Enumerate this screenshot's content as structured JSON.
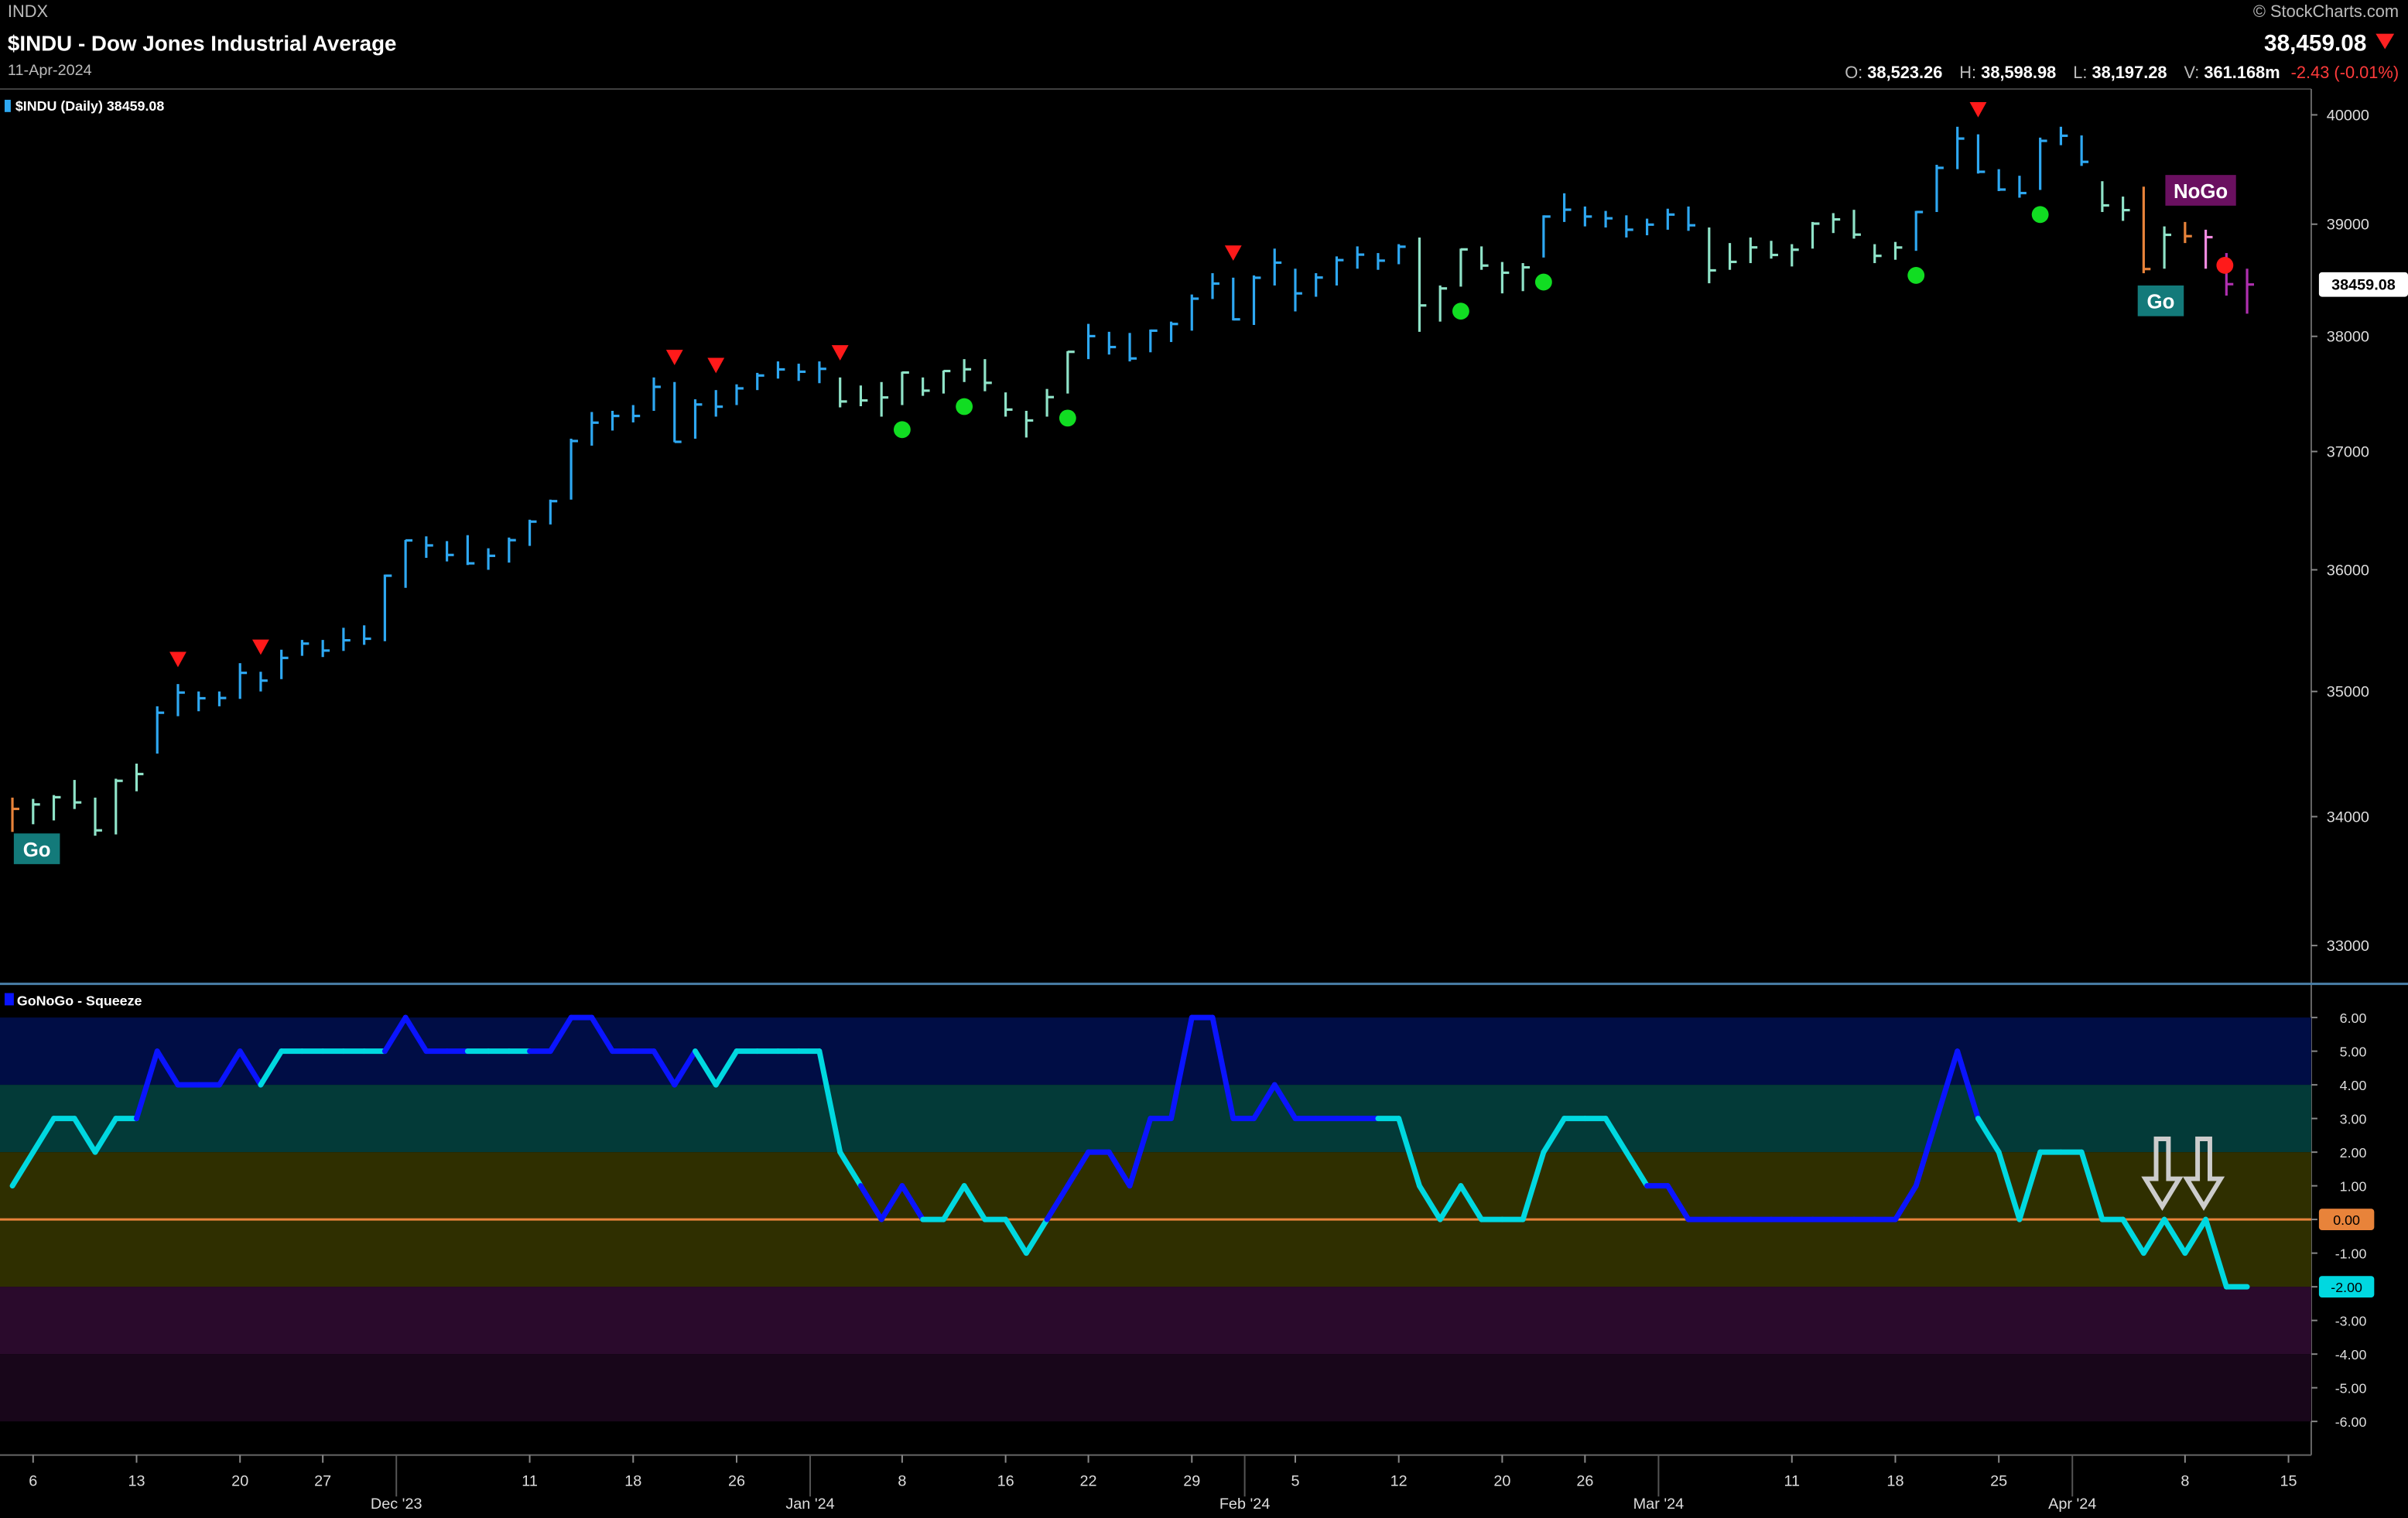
{
  "header": {
    "exchange": "INDX",
    "title": "$INDU - Dow Jones Industrial Average",
    "date": "11-Apr-2024",
    "copyright": "© StockCharts.com",
    "last": "38,459.08",
    "open_label": "O:",
    "open": "38,523.26",
    "high_label": "H:",
    "high": "38,598.98",
    "low_label": "L:",
    "low": "38,197.28",
    "volume_label": "V:",
    "volume": "361.168m",
    "change": "-2.43 (-0.01%)"
  },
  "chart_data": [
    {
      "type": "ohlc",
      "legend": "$INDU (Daily) 38459.08",
      "log": true,
      "ylim": [
        32720,
        40240
      ],
      "yticks": [
        33000,
        34000,
        35000,
        36000,
        37000,
        38000,
        39000,
        40000
      ],
      "last_price": 38459.08,
      "xlim": [
        -0.6,
        111.1
      ],
      "xticks": [
        {
          "value": 1,
          "label": "6"
        },
        {
          "value": 6,
          "label": "13"
        },
        {
          "value": 11,
          "label": "20"
        },
        {
          "value": 15,
          "label": "27"
        },
        {
          "value": 25,
          "label": "11"
        },
        {
          "value": 30,
          "label": "18"
        },
        {
          "value": 35,
          "label": "26"
        },
        {
          "value": 43,
          "label": "8"
        },
        {
          "value": 48,
          "label": "16"
        },
        {
          "value": 52,
          "label": "22"
        },
        {
          "value": 57,
          "label": "29"
        },
        {
          "value": 62,
          "label": "5"
        },
        {
          "value": 67,
          "label": "12"
        },
        {
          "value": 72,
          "label": "20"
        },
        {
          "value": 76,
          "label": "26"
        },
        {
          "value": 86,
          "label": "11"
        },
        {
          "value": 91,
          "label": "18"
        },
        {
          "value": 96,
          "label": "25"
        },
        {
          "value": 105,
          "label": "8"
        },
        {
          "value": 110,
          "label": "15"
        }
      ],
      "month_ticks": [
        {
          "value": 19,
          "label": "Dec '23"
        },
        {
          "value": 39,
          "label": "Jan '24"
        },
        {
          "value": 60,
          "label": "Feb '24"
        },
        {
          "value": 80,
          "label": "Mar '24"
        },
        {
          "value": 100,
          "label": "Apr '24"
        }
      ],
      "close": [
        34061,
        34096,
        34153,
        34112,
        33892,
        34283,
        34337,
        34828,
        34991,
        34945,
        34947,
        35151,
        35088,
        35273,
        35390,
        35333,
        35417,
        35430,
        35951,
        36246,
        36204,
        36124,
        36054,
        36117,
        36248,
        36404,
        36577,
        37090,
        37248,
        37306,
        37306,
        37558,
        37083,
        37405,
        37386,
        37545,
        37657,
        37710,
        37690,
        37715,
        37431,
        37440,
        37466,
        37683,
        37525,
        37696,
        37711,
        37593,
        37361,
        37267,
        37469,
        37864,
        38002,
        37906,
        37806,
        38050,
        38109,
        38333,
        38467,
        38150,
        38519,
        38654,
        38380,
        38521,
        38677,
        38726,
        38672,
        38797,
        38273,
        38424,
        38773,
        38628,
        38564,
        38612,
        39069,
        39131,
        39069,
        39053,
        38950,
        38996,
        39087,
        38990,
        38585,
        38661,
        38791,
        38723,
        38770,
        39005,
        39043,
        38906,
        38715,
        38790,
        39110,
        39512,
        39781,
        39476,
        39314,
        39282,
        39760,
        39807,
        39567,
        39170,
        39127,
        38597,
        38904,
        38892,
        38883,
        38462,
        38459
      ],
      "high": [
        34150,
        34140,
        34170,
        34290,
        34150,
        34300,
        34420,
        34880,
        35060,
        35000,
        35000,
        35230,
        35160,
        35340,
        35420,
        35420,
        35520,
        35540,
        35960,
        36250,
        36280,
        36240,
        36290,
        36180,
        36270,
        36420,
        36590,
        37110,
        37340,
        37350,
        37400,
        37640,
        37600,
        37450,
        37530,
        37580,
        37680,
        37780,
        37760,
        37780,
        37640,
        37570,
        37600,
        37690,
        37640,
        37700,
        37800,
        37800,
        37510,
        37350,
        37540,
        37870,
        38110,
        38040,
        38030,
        38060,
        38130,
        38370,
        38560,
        38520,
        38540,
        38780,
        38600,
        38560,
        38710,
        38800,
        38740,
        38820,
        38880,
        38450,
        38780,
        38800,
        38660,
        38650,
        39080,
        39280,
        39160,
        39120,
        39080,
        39050,
        39140,
        39160,
        38970,
        38830,
        38880,
        38850,
        38820,
        39020,
        39100,
        39130,
        38820,
        38840,
        39120,
        39540,
        39890,
        39820,
        39500,
        39440,
        39790,
        39890,
        39810,
        39390,
        39250,
        39340,
        38980,
        39020,
        38950,
        38740,
        38600
      ],
      "low": [
        33880,
        33940,
        33970,
        34060,
        33850,
        33860,
        34200,
        34500,
        34800,
        34840,
        34880,
        34940,
        35000,
        35100,
        35290,
        35280,
        35330,
        35380,
        35410,
        35850,
        36100,
        36070,
        36040,
        36000,
        36060,
        36200,
        36380,
        36590,
        37050,
        37180,
        37250,
        37350,
        37080,
        37110,
        37300,
        37400,
        37530,
        37630,
        37610,
        37590,
        37380,
        37390,
        37300,
        37400,
        37480,
        37500,
        37600,
        37520,
        37300,
        37120,
        37300,
        37500,
        37800,
        37840,
        37780,
        37860,
        37950,
        38050,
        38330,
        38140,
        38100,
        38450,
        38220,
        38350,
        38450,
        38600,
        38590,
        38640,
        38040,
        38130,
        38440,
        38590,
        38380,
        38400,
        38700,
        39020,
        38980,
        38970,
        38880,
        38900,
        38950,
        38940,
        38470,
        38590,
        38650,
        38690,
        38620,
        38780,
        38920,
        38870,
        38650,
        38680,
        38760,
        39110,
        39500,
        39460,
        39300,
        39240,
        39310,
        39720,
        39530,
        39110,
        39030,
        38560,
        38600,
        38830,
        38600,
        38360,
        38200
      ],
      "colors": [
        "#e8833a",
        "#8fe3c8",
        "#8fe3c8",
        "#8fe3c8",
        "#8fe3c8",
        "#8fe3c8",
        "#8fe3c8",
        "#2ea8f2",
        "#2ea8f2",
        "#2ea8f2",
        "#2ea8f2",
        "#2ea8f2",
        "#2ea8f2",
        "#2ea8f2",
        "#2ea8f2",
        "#2ea8f2",
        "#2ea8f2",
        "#2ea8f2",
        "#2ea8f2",
        "#2ea8f2",
        "#2ea8f2",
        "#2ea8f2",
        "#2ea8f2",
        "#2ea8f2",
        "#2ea8f2",
        "#2ea8f2",
        "#2ea8f2",
        "#2ea8f2",
        "#2ea8f2",
        "#2ea8f2",
        "#2ea8f2",
        "#2ea8f2",
        "#2ea8f2",
        "#2ea8f2",
        "#2ea8f2",
        "#2ea8f2",
        "#2ea8f2",
        "#2ea8f2",
        "#2ea8f2",
        "#2ea8f2",
        "#8fe3c8",
        "#8fe3c8",
        "#8fe3c8",
        "#8fe3c8",
        "#8fe3c8",
        "#8fe3c8",
        "#8fe3c8",
        "#8fe3c8",
        "#8fe3c8",
        "#8fe3c8",
        "#8fe3c8",
        "#8fe3c8",
        "#2ea8f2",
        "#2ea8f2",
        "#2ea8f2",
        "#2ea8f2",
        "#2ea8f2",
        "#2ea8f2",
        "#2ea8f2",
        "#2ea8f2",
        "#2ea8f2",
        "#2ea8f2",
        "#2ea8f2",
        "#2ea8f2",
        "#2ea8f2",
        "#2ea8f2",
        "#2ea8f2",
        "#2ea8f2",
        "#8fe3c8",
        "#8fe3c8",
        "#8fe3c8",
        "#8fe3c8",
        "#8fe3c8",
        "#8fe3c8",
        "#2ea8f2",
        "#2ea8f2",
        "#2ea8f2",
        "#2ea8f2",
        "#2ea8f2",
        "#2ea8f2",
        "#2ea8f2",
        "#2ea8f2",
        "#8fe3c8",
        "#8fe3c8",
        "#8fe3c8",
        "#8fe3c8",
        "#8fe3c8",
        "#8fe3c8",
        "#8fe3c8",
        "#8fe3c8",
        "#8fe3c8",
        "#8fe3c8",
        "#2ea8f2",
        "#2ea8f2",
        "#2ea8f2",
        "#2ea8f2",
        "#2ea8f2",
        "#2ea8f2",
        "#2ea8f2",
        "#2ea8f2",
        "#2ea8f2",
        "#8fe3c8",
        "#8fe3c8",
        "#e8833a",
        "#8fe3c8",
        "#e8833a",
        "#f28ae0",
        "#b030b0",
        "#b030b0"
      ],
      "signals": {
        "down_triangles": [
          8,
          12,
          32,
          34,
          40,
          59,
          95
        ],
        "go_dots": [
          43,
          46,
          51,
          70,
          74,
          92,
          98
        ],
        "nogo_dots": [
          107
        ]
      },
      "annotations": [
        "Go",
        "NoGo",
        "Go"
      ]
    },
    {
      "type": "line",
      "title": "GoNoGo - Squeeze",
      "ylim": [
        -7,
        7
      ],
      "yticks": [
        {
          "value": 6,
          "label": "6.00"
        },
        {
          "value": 5,
          "label": "5.00"
        },
        {
          "value": 4,
          "label": "4.00"
        },
        {
          "value": 3,
          "label": "3.00"
        },
        {
          "value": 2,
          "label": "2.00"
        },
        {
          "value": 1,
          "label": "1.00"
        },
        {
          "value": 0,
          "label": "0.00"
        },
        {
          "value": -1,
          "label": "-1.00"
        },
        {
          "value": -2,
          "label": "-2.00"
        },
        {
          "value": -3,
          "label": "-3.00"
        },
        {
          "value": -4,
          "label": "-4.00"
        },
        {
          "value": -5,
          "label": "-5.00"
        },
        {
          "value": -6,
          "label": "-6.00"
        }
      ],
      "zero_label": {
        "value": 0,
        "label": "0.00"
      },
      "last_label": {
        "value": -2,
        "label": "-2.00"
      },
      "values": [
        1,
        2,
        3,
        3,
        2,
        3,
        3,
        5,
        4,
        4,
        4,
        5,
        4,
        5,
        5,
        5,
        5,
        5,
        5,
        6,
        5,
        5,
        5,
        5,
        5,
        5,
        5,
        6,
        6,
        5,
        5,
        5,
        4,
        5,
        4,
        5,
        5,
        5,
        5,
        5,
        2,
        1,
        0,
        1,
        0,
        0,
        1,
        0,
        0,
        -1,
        0,
        1,
        2,
        2,
        1,
        3,
        3,
        6,
        6,
        3,
        3,
        4,
        3,
        3,
        3,
        3,
        3,
        3,
        1,
        0,
        1,
        0,
        0,
        0,
        2,
        3,
        3,
        3,
        2,
        1,
        1,
        0,
        0,
        0,
        0,
        0,
        0,
        0,
        0,
        0,
        0,
        0,
        1,
        3,
        5,
        3,
        2,
        0,
        2,
        2,
        2,
        0,
        0,
        -1,
        0,
        -1,
        0,
        -2,
        -2
      ],
      "colors": [
        "#00d8e0",
        "#00d8e0",
        "#00d8e0",
        "#00d8e0",
        "#00d8e0",
        "#00d8e0",
        "#00d8e0",
        "#0a14ff",
        "#0a14ff",
        "#0a14ff",
        "#0a14ff",
        "#0a14ff",
        "#0a14ff",
        "#00d8e0",
        "#00d8e0",
        "#00d8e0",
        "#00d8e0",
        "#00d8e0",
        "#00d8e0",
        "#0a14ff",
        "#0a14ff",
        "#0a14ff",
        "#0a14ff",
        "#00d8e0",
        "#00d8e0",
        "#00d8e0",
        "#0a14ff",
        "#0a14ff",
        "#0a14ff",
        "#0a14ff",
        "#0a14ff",
        "#0a14ff",
        "#0a14ff",
        "#0a14ff",
        "#00d8e0",
        "#00d8e0",
        "#00d8e0",
        "#00d8e0",
        "#00d8e0",
        "#00d8e0",
        "#00d8e0",
        "#00d8e0",
        "#0a14ff",
        "#0a14ff",
        "#0a14ff",
        "#00d8e0",
        "#00d8e0",
        "#00d8e0",
        "#00d8e0",
        "#00d8e0",
        "#00d8e0",
        "#0a14ff",
        "#0a14ff",
        "#0a14ff",
        "#0a14ff",
        "#0a14ff",
        "#0a14ff",
        "#0a14ff",
        "#0a14ff",
        "#0a14ff",
        "#0a14ff",
        "#0a14ff",
        "#0a14ff",
        "#0a14ff",
        "#0a14ff",
        "#0a14ff",
        "#0a14ff",
        "#00d8e0",
        "#00d8e0",
        "#00d8e0",
        "#00d8e0",
        "#00d8e0",
        "#00d8e0",
        "#00d8e0",
        "#00d8e0",
        "#00d8e0",
        "#00d8e0",
        "#00d8e0",
        "#00d8e0",
        "#00d8e0",
        "#0a14ff",
        "#0a14ff",
        "#0a14ff",
        "#0a14ff",
        "#0a14ff",
        "#0a14ff",
        "#0a14ff",
        "#0a14ff",
        "#0a14ff",
        "#0a14ff",
        "#0a14ff",
        "#0a14ff",
        "#0a14ff",
        "#0a14ff",
        "#0a14ff",
        "#0a14ff",
        "#00d8e0",
        "#00d8e0",
        "#00d8e0",
        "#00d8e0",
        "#00d8e0",
        "#00d8e0",
        "#00d8e0",
        "#00d8e0",
        "#00d8e0",
        "#00d8e0",
        "#00d8e0",
        "#00d8e0",
        "#00d8e0"
      ]
    }
  ]
}
